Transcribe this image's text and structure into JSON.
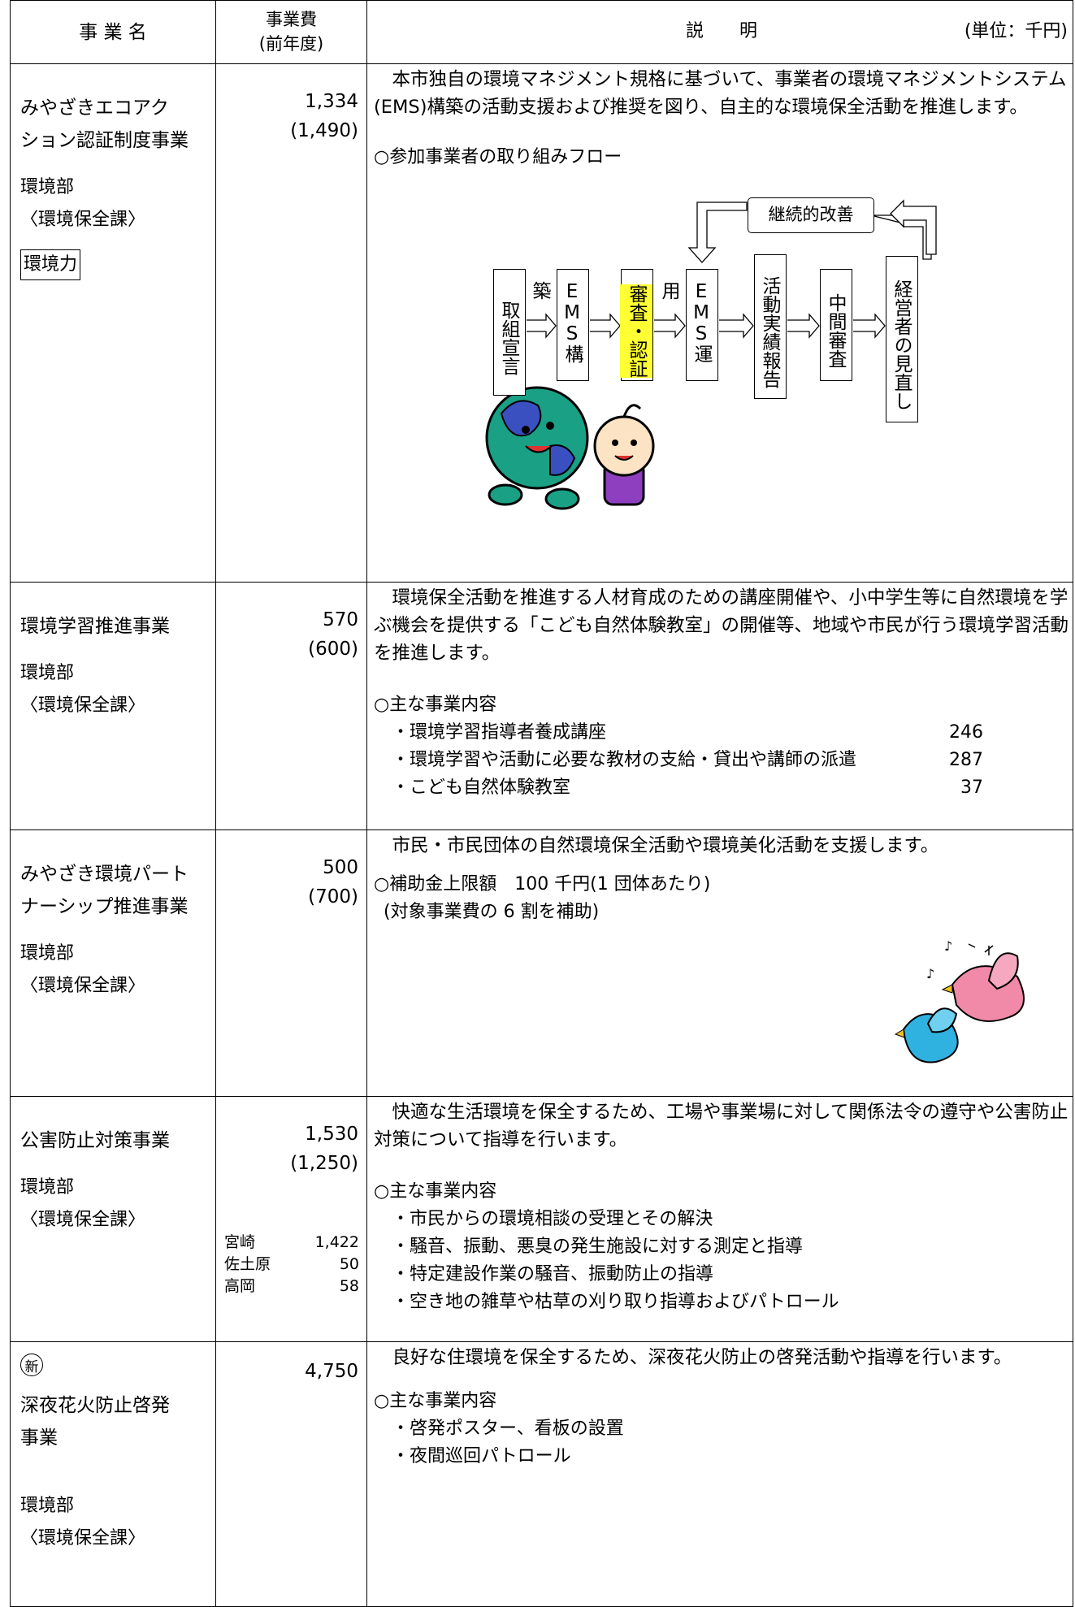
{
  "header": {
    "name": "事 業 名",
    "cost": "事業費",
    "cost_sub": "(前年度)",
    "description": "説　　明",
    "unit": "(単位：千円)"
  },
  "rows": [
    {
      "name_lines": [
        "みやざきエコアク",
        "ション認証制度事業"
      ],
      "cost": "1,334",
      "prev_cost": "(1,490)",
      "department": "環境部",
      "division": "〈環境保全課〉",
      "tag": "環境力",
      "description": "本市独自の環境マネジメント規格に基づいて、事業者の環境マネジメントシステム(EMS)構築の活動支援および推奨を図り、自主的な環境保全活動を推進します。",
      "flow_title": "○参加事業者の取り組みフロー",
      "flow_steps": [
        "取組宣言",
        "EMS構築",
        "審査・認証",
        "EMS運用",
        "活動実績報告",
        "中間審査",
        "経営者の見直し"
      ],
      "flow_loop": "継続的改善"
    },
    {
      "name_lines": [
        "環境学習推進事業"
      ],
      "cost": "570",
      "prev_cost": "(600)",
      "department": "環境部",
      "division": "〈環境保全課〉",
      "description": "環境保全活動を推進する人材育成のための講座開催や、小中学生等に自然環境を学ぶ機会を提供する「こども自然体験教室」の開催等、地域や市民が行う環境学習活動を推進します。",
      "items_title": "○主な事業内容",
      "items": [
        {
          "label": "・環境学習指導者養成講座",
          "amount": 246
        },
        {
          "label": "・環境学習や活動に必要な教材の支給・貸出や講師の派遣",
          "amount": 287
        },
        {
          "label": "・こども自然体験教室",
          "amount": 37
        }
      ]
    },
    {
      "name_lines": [
        "みやざき環境パート",
        "ナーシップ推進事業"
      ],
      "cost": "500",
      "prev_cost": "(700)",
      "department": "環境部",
      "division": "〈環境保全課〉",
      "description": "市民・市民団体の自然環境保全活動や環境美化活動を支援します。",
      "notes": [
        "○補助金上限額　100 千円(1 団体あたり)",
        "(対象事業費の 6 割を補助)"
      ]
    },
    {
      "name_lines": [
        "公害防止対策事業"
      ],
      "cost": "1,530",
      "prev_cost": "(1,250)",
      "department": "環境部",
      "division": "〈環境保全課〉",
      "breakdown": [
        {
          "place": "宮崎",
          "amount": "1,422"
        },
        {
          "place": "佐土原",
          "amount": "50"
        },
        {
          "place": "高岡",
          "amount": "58"
        }
      ],
      "description": "快適な生活環境を保全するため、工場や事業場に対して関係法令の遵守や公害防止対策について指導を行います。",
      "items_title": "○主な事業内容",
      "items": [
        "・市民からの環境相談の受理とその解決",
        "・騒音、振動、悪臭の発生施設に対する測定と指導",
        "・特定建設作業の騒音、振動防止の指導",
        "・空き地の雑草や枯草の刈り取り指導およびパトロール"
      ]
    },
    {
      "new_mark": "新",
      "name_lines": [
        "深夜花火防止啓発",
        "事業"
      ],
      "cost": "4,750",
      "department": "環境部",
      "division": "〈環境保全課〉",
      "description": "良好な住環境を保全するため、深夜花火防止の啓発活動や指導を行います。",
      "items_title": "○主な事業内容",
      "items": [
        "・啓発ポスター、看板の設置",
        "・夜間巡回パトロール"
      ]
    }
  ]
}
